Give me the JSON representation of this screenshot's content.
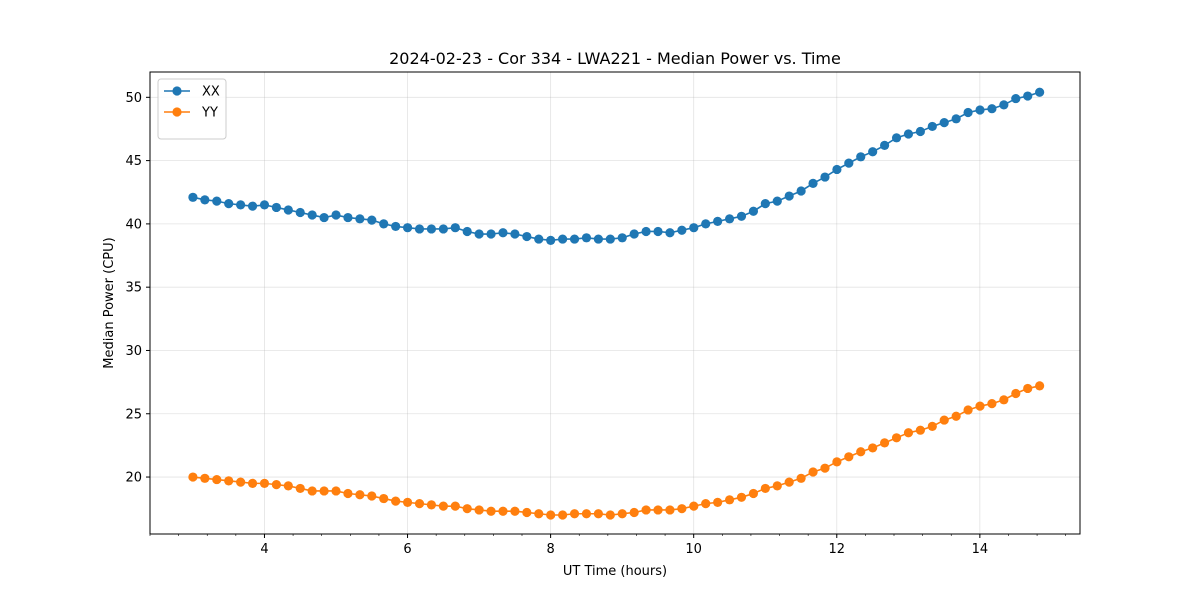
{
  "chart_data": {
    "type": "line",
    "title": "2024-02-23 - Cor 334 - LWA221 - Median Power vs. Time",
    "xlabel": "UT Time (hours)",
    "ylabel": "Median Power (CPU)",
    "xlim": [
      2.4,
      15.4
    ],
    "ylim": [
      15.5,
      52
    ],
    "xticks": [
      4,
      6,
      8,
      10,
      12,
      14
    ],
    "yticks": [
      20,
      25,
      30,
      35,
      40,
      45,
      50
    ],
    "xminor_step": 0.4,
    "grid": true,
    "legend_position": "top-left",
    "x_start": 3.0,
    "x_step": 0.1667,
    "series": [
      {
        "name": "XX",
        "color": "#1f77b4",
        "marker": "circle",
        "values": [
          42.1,
          41.9,
          41.8,
          41.6,
          41.5,
          41.4,
          41.5,
          41.3,
          41.1,
          40.9,
          40.7,
          40.5,
          40.7,
          40.5,
          40.4,
          40.3,
          40.0,
          39.8,
          39.7,
          39.6,
          39.6,
          39.6,
          39.7,
          39.4,
          39.2,
          39.2,
          39.3,
          39.2,
          39.0,
          38.8,
          38.7,
          38.8,
          38.8,
          38.9,
          38.8,
          38.8,
          38.9,
          39.2,
          39.4,
          39.4,
          39.3,
          39.5,
          39.7,
          40.0,
          40.2,
          40.4,
          40.6,
          41.0,
          41.6,
          41.8,
          42.2,
          42.6,
          43.2,
          43.7,
          44.3,
          44.8,
          45.3,
          45.7,
          46.2,
          46.8,
          47.1,
          47.3,
          47.7,
          48.0,
          48.3,
          48.8,
          49.0,
          49.1,
          49.4,
          49.9,
          50.1,
          50.4
        ]
      },
      {
        "name": "YY",
        "color": "#ff7f0e",
        "marker": "circle",
        "values": [
          20.0,
          19.9,
          19.8,
          19.7,
          19.6,
          19.5,
          19.5,
          19.4,
          19.3,
          19.1,
          18.9,
          18.9,
          18.9,
          18.7,
          18.6,
          18.5,
          18.3,
          18.1,
          18.0,
          17.9,
          17.8,
          17.7,
          17.7,
          17.5,
          17.4,
          17.3,
          17.3,
          17.3,
          17.2,
          17.1,
          17.0,
          17.0,
          17.1,
          17.1,
          17.1,
          17.0,
          17.1,
          17.2,
          17.4,
          17.4,
          17.4,
          17.5,
          17.7,
          17.9,
          18.0,
          18.2,
          18.4,
          18.7,
          19.1,
          19.3,
          19.6,
          19.9,
          20.4,
          20.7,
          21.2,
          21.6,
          22.0,
          22.3,
          22.7,
          23.1,
          23.5,
          23.7,
          24.0,
          24.5,
          24.8,
          25.3,
          25.6,
          25.8,
          26.1,
          26.6,
          27.0,
          27.2
        ]
      }
    ]
  }
}
